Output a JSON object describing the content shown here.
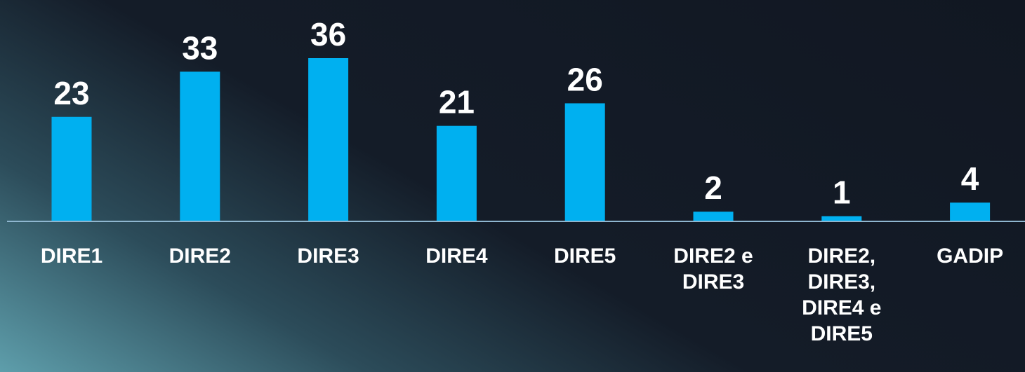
{
  "chart_data": {
    "type": "bar",
    "categories": [
      "DIRE1",
      "DIRE2",
      "DIRE3",
      "DIRE4",
      "DIRE5",
      "DIRE2 e DIRE3",
      "DIRE2, DIRE3, DIRE4 e DIRE5",
      "GADIP"
    ],
    "values": [
      23,
      33,
      36,
      21,
      26,
      2,
      1,
      4
    ],
    "color": "#00b0f0"
  }
}
